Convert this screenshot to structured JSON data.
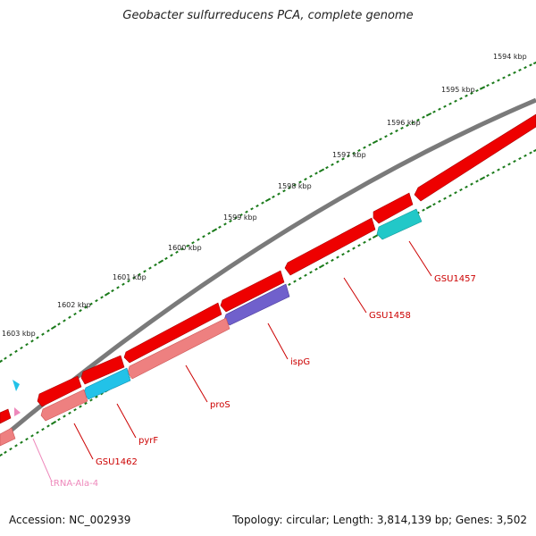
{
  "title": "Geobacter sulfurreducens PCA, complete genome",
  "footer": {
    "accession": "Accession: NC_002939",
    "summary": "Topology: circular; Length: 3,814,139 bp; Genes: 3,502"
  },
  "colors": {
    "backbone": "#7a7a7a",
    "gene": "#ee0000",
    "pseudo_pink": "#ee8080",
    "cyan": "#22c2e8",
    "teal": "#22c8c8",
    "purple": "#7060cc",
    "ticks": "#1a7a1a",
    "label_red": "#cc0000",
    "label_pink": "#ee88bb"
  },
  "kbp_labels": [
    "1594 kbp",
    "1595 kbp",
    "1596 kbp",
    "1597 kbp",
    "1598 kbp",
    "1599 kbp",
    "1600 kbp",
    "1601 kbp",
    "1602 kbp",
    "1603 kbp"
  ],
  "gene_labels": [
    "GSU1457",
    "GSU1458",
    "ispG",
    "proS",
    "pyrF",
    "GSU1462",
    "tRNA-Ala-4"
  ]
}
